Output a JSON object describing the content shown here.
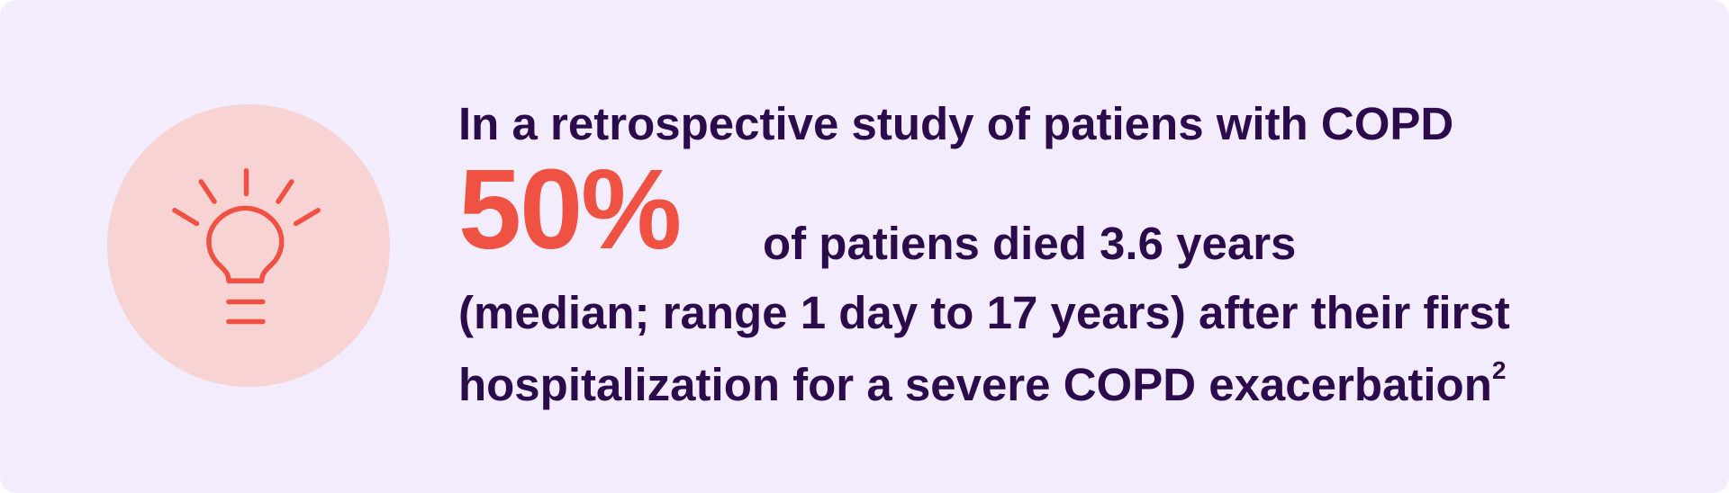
{
  "callout": {
    "lead": "In a retrospective study of patiens with COPD",
    "stat": "50%",
    "stat_text": "of patiens died 3.6 years",
    "lines": [
      "(median; range 1 day to 17 years) after their first",
      "hospitalization for a severe COPD exacerbation"
    ],
    "footnote": "2"
  }
}
